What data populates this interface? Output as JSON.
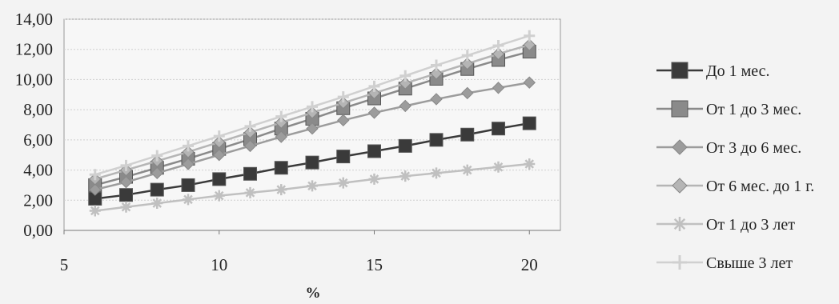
{
  "chart_data": {
    "type": "line",
    "title": "",
    "xlabel": "%",
    "ylabel": "",
    "x": [
      6,
      7,
      8,
      9,
      10,
      11,
      12,
      13,
      14,
      15,
      16,
      17,
      18,
      19,
      20
    ],
    "xlim": [
      5,
      21
    ],
    "ylim": [
      0,
      14
    ],
    "x_ticks": [
      5,
      10,
      15,
      20
    ],
    "x_tick_labels": [
      "5",
      "10",
      "15",
      "20"
    ],
    "y_ticks": [
      0,
      2,
      4,
      6,
      8,
      10,
      12,
      14
    ],
    "y_tick_labels": [
      "0,00",
      "2,00",
      "4,00",
      "6,00",
      "8,00",
      "10,00",
      "12,00",
      "14,00"
    ],
    "grid": true,
    "legend_position": "right",
    "series": [
      {
        "name": "До 1 мес.",
        "marker": "square",
        "color": "#3a3a3a",
        "values": [
          2.1,
          2.35,
          2.7,
          3.0,
          3.4,
          3.75,
          4.15,
          4.5,
          4.9,
          5.25,
          5.6,
          6.0,
          6.35,
          6.75,
          7.1
        ]
      },
      {
        "name": "От 1 до 3 мес.",
        "marker": "square",
        "color": "#8a8a8a",
        "values": [
          3.0,
          3.55,
          4.15,
          4.75,
          5.4,
          6.05,
          6.75,
          7.4,
          8.1,
          8.75,
          9.4,
          10.05,
          10.7,
          11.3,
          11.85
        ]
      },
      {
        "name": "От 3 до 6 мес.",
        "marker": "diamond",
        "color": "#9c9c9c",
        "values": [
          2.7,
          3.2,
          3.8,
          4.4,
          5.0,
          5.6,
          6.2,
          6.75,
          7.3,
          7.8,
          8.25,
          8.7,
          9.1,
          9.45,
          9.8
        ]
      },
      {
        "name": "От 6 мес. до 1 г.",
        "marker": "diamond",
        "color": "#b5b5b5",
        "values": [
          3.4,
          4.0,
          4.6,
          5.2,
          5.85,
          6.5,
          7.15,
          7.8,
          8.45,
          9.1,
          9.75,
          10.4,
          11.05,
          11.7,
          12.3
        ]
      },
      {
        "name": "От 1 до 3 лет",
        "marker": "star",
        "color": "#c0c0c0",
        "values": [
          1.3,
          1.55,
          1.8,
          2.05,
          2.3,
          2.5,
          2.7,
          2.95,
          3.15,
          3.4,
          3.6,
          3.8,
          4.0,
          4.2,
          4.4
        ]
      },
      {
        "name": "Свыше 3 лет",
        "marker": "plus",
        "color": "#d0d0d0",
        "values": [
          3.7,
          4.3,
          4.95,
          5.6,
          6.25,
          6.9,
          7.55,
          8.2,
          8.85,
          9.55,
          10.25,
          10.95,
          11.6,
          12.25,
          12.9
        ]
      }
    ]
  }
}
